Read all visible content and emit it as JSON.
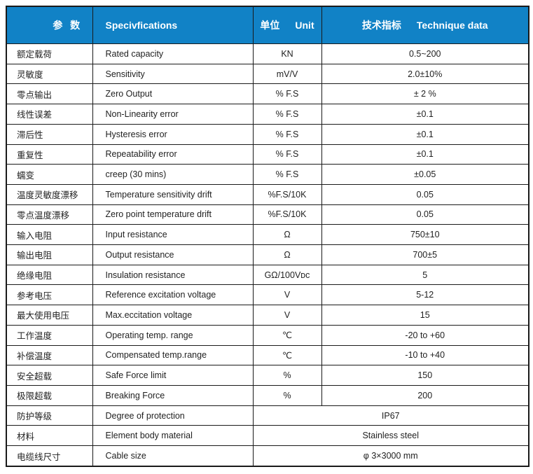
{
  "colors": {
    "header_bg": "#1182C6",
    "header_text": "#FFFFFF",
    "grid_line": "#1A1A1A",
    "cell_text": "#1F1F1F",
    "page_bg": "#FFFFFF"
  },
  "table": {
    "header": {
      "param_label": "参  数",
      "spec_label": "Specivfications",
      "unit_zh": "单位",
      "unit_en": "Unit",
      "value_zh": "技术指标",
      "value_en": "Technique data"
    },
    "rows": [
      {
        "param": "额定载荷",
        "spec": "Rated capacity",
        "unit": "KN",
        "value": "0.5~200"
      },
      {
        "param": "灵敏度",
        "spec": "Sensitivity",
        "unit": "mV/V",
        "value": "2.0±10%"
      },
      {
        "param": "零点输出",
        "spec": "Zero Output",
        "unit": "% F.S",
        "value": "± 2 %"
      },
      {
        "param": "线性误差",
        "spec": "Non-Linearity error",
        "unit": "% F.S",
        "value": "±0.1"
      },
      {
        "param": "滞后性",
        "spec": "Hysteresis error",
        "unit": "% F.S",
        "value": "±0.1"
      },
      {
        "param": "重复性",
        "spec": "Repeatability error",
        "unit": "% F.S",
        "value": "±0.1"
      },
      {
        "param": "蠕变",
        "spec": "creep (30 mins)",
        "unit": "% F.S",
        "value": "±0.05"
      },
      {
        "param": "温度灵敏度漂移",
        "spec": "Temperature sensitivity drift",
        "unit": "%F.S/10K",
        "value": "0.05"
      },
      {
        "param": "零点温度漂移",
        "spec": "Zero point temperature drift",
        "unit": "%F.S/10K",
        "value": "0.05"
      },
      {
        "param": "输入电阻",
        "spec": "Input resistance",
        "unit": "Ω",
        "value": "750±10"
      },
      {
        "param": "输出电阻",
        "spec": "Output resistance",
        "unit": "Ω",
        "value": "700±5"
      },
      {
        "param": "绝缘电阻",
        "spec": "Insulation resistance",
        "unit": "GΩ/100Vᴅᴄ",
        "value": "5"
      },
      {
        "param": "参考电压",
        "spec": "Reference excitation voltage",
        "unit": "V",
        "value": "5-12"
      },
      {
        "param": "最大使用电压",
        "spec": "Max.eccitation voltage",
        "unit": "V",
        "value": "15"
      },
      {
        "param": "工作温度",
        "spec": "Operating temp. range",
        "unit": "℃",
        "value": "-20 to +60"
      },
      {
        "param": "补偿温度",
        "spec": "Compensated temp.range",
        "unit": "℃",
        "value": "-10 to +40"
      },
      {
        "param": "安全超载",
        "spec": "Safe Force limit",
        "unit": "%",
        "value": "150"
      },
      {
        "param": "极限超载",
        "spec": "Breaking Force",
        "unit": "%",
        "value": "200"
      },
      {
        "param": "防护等级",
        "spec": "Degree of protection",
        "unit": null,
        "value": "IP67"
      },
      {
        "param": "材料",
        "spec": "Element body material",
        "unit": null,
        "value": "Stainless steel"
      },
      {
        "param": "电缆线尺寸",
        "spec": "Cable size",
        "unit": null,
        "value": "φ 3×3000 mm"
      }
    ]
  }
}
